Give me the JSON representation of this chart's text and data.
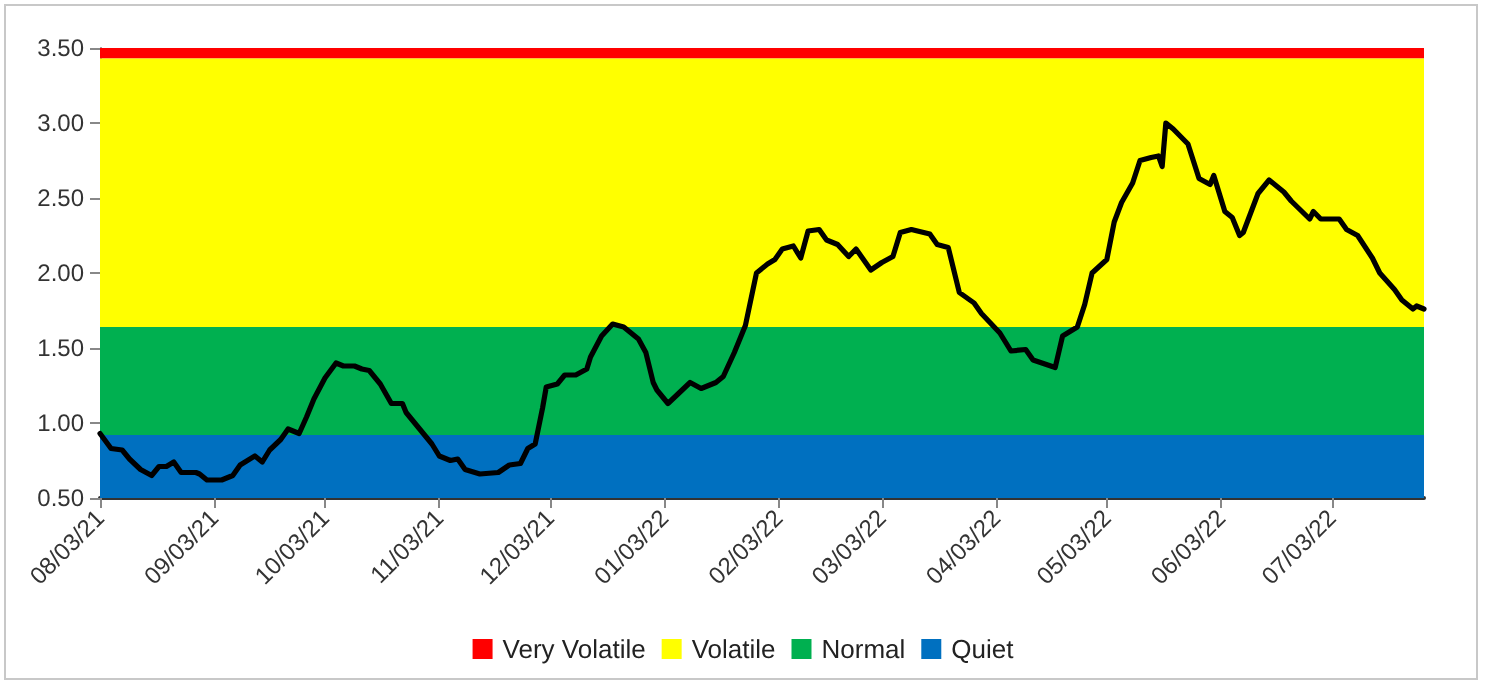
{
  "chart_data": {
    "type": "line",
    "line_style": "solid",
    "legend": "bottom",
    "xlim": [
      "2021-08-03",
      "2022-07-28"
    ],
    "xticks": [
      {
        "value": "2021-08-03",
        "label": "08/03/21"
      },
      {
        "value": "2021-09-03",
        "label": "09/03/21"
      },
      {
        "value": "2021-10-03",
        "label": "10/03/21"
      },
      {
        "value": "2021-11-03",
        "label": "11/03/21"
      },
      {
        "value": "2021-12-03",
        "label": "12/03/21"
      },
      {
        "value": "2022-01-03",
        "label": "01/03/22"
      },
      {
        "value": "2022-02-03",
        "label": "02/03/22"
      },
      {
        "value": "2022-03-03",
        "label": "03/03/22"
      },
      {
        "value": "2022-04-03",
        "label": "04/03/22"
      },
      {
        "value": "2022-05-03",
        "label": "05/03/22"
      },
      {
        "value": "2022-06-03",
        "label": "06/03/22"
      },
      {
        "value": "2022-07-03",
        "label": "07/03/22"
      }
    ],
    "ylim": [
      0.5,
      3.5
    ],
    "yticks": [
      {
        "value": 0.5,
        "label": "0.50"
      },
      {
        "value": 1,
        "label": "1.00"
      },
      {
        "value": 1.5,
        "label": "1.50"
      },
      {
        "value": 2,
        "label": "2.00"
      },
      {
        "value": 2.5,
        "label": "2.50"
      },
      {
        "value": 3,
        "label": "3.00"
      },
      {
        "value": 3.5,
        "label": "3.50"
      }
    ],
    "bands": [
      {
        "axis": "y",
        "from": 3.43,
        "to": 3.5,
        "label": "Very Volatile",
        "color": "#ff0000"
      },
      {
        "axis": "y",
        "from": 1.64,
        "to": 3.43,
        "label": "Volatile",
        "color": "#ffff00"
      },
      {
        "axis": "y",
        "from": 0.92,
        "to": 1.64,
        "label": "Normal",
        "color": "#00b050"
      },
      {
        "axis": "y",
        "from": 0.5,
        "to": 0.92,
        "label": "Quiet",
        "color": "#0070c0"
      }
    ],
    "series": [
      {
        "color": "#000000",
        "x": [
          "2021-08-03",
          "2021-08-06",
          "2021-08-09",
          "2021-08-11",
          "2021-08-14",
          "2021-08-17",
          "2021-08-19",
          "2021-08-21",
          "2021-08-23",
          "2021-08-25",
          "2021-08-29",
          "2021-08-30",
          "2021-09-01",
          "2021-09-05",
          "2021-09-08",
          "2021-09-10",
          "2021-09-14",
          "2021-09-16",
          "2021-09-18",
          "2021-09-21",
          "2021-09-23",
          "2021-09-26",
          "2021-09-28",
          "2021-09-30",
          "2021-10-03",
          "2021-10-06",
          "2021-10-08",
          "2021-10-11",
          "2021-10-13",
          "2021-10-15",
          "2021-10-18",
          "2021-10-21",
          "2021-10-24",
          "2021-10-25",
          "2021-10-28",
          "2021-11-01",
          "2021-11-03",
          "2021-11-06",
          "2021-11-08",
          "2021-11-10",
          "2021-11-14",
          "2021-11-19",
          "2021-11-22",
          "2021-11-25",
          "2021-11-27",
          "2021-11-29",
          "2021-12-01",
          "2021-12-02",
          "2021-12-05",
          "2021-12-07",
          "2021-12-10",
          "2021-12-13",
          "2021-12-14",
          "2021-12-17",
          "2021-12-20",
          "2021-12-23",
          "2021-12-27",
          "2021-12-29",
          "2021-12-31",
          "2022-01-01",
          "2022-01-04",
          "2022-01-07",
          "2022-01-10",
          "2022-01-13",
          "2022-01-17",
          "2022-01-19",
          "2022-01-22",
          "2022-01-25",
          "2022-01-28",
          "2022-01-31",
          "2022-02-02",
          "2022-02-04",
          "2022-02-07",
          "2022-02-09",
          "2022-02-11",
          "2022-02-14",
          "2022-02-16",
          "2022-02-19",
          "2022-02-22",
          "2022-02-24",
          "2022-02-28",
          "2022-03-03",
          "2022-03-06",
          "2022-03-08",
          "2022-03-11",
          "2022-03-16",
          "2022-03-18",
          "2022-03-21",
          "2022-03-24",
          "2022-03-28",
          "2022-03-30",
          "2022-04-04",
          "2022-04-07",
          "2022-04-11",
          "2022-04-13",
          "2022-04-19",
          "2022-04-21",
          "2022-04-25",
          "2022-04-27",
          "2022-04-29",
          "2022-05-03",
          "2022-05-05",
          "2022-05-07",
          "2022-05-10",
          "2022-05-12",
          "2022-05-15",
          "2022-05-17",
          "2022-05-18",
          "2022-05-19",
          "2022-05-21",
          "2022-05-25",
          "2022-05-28",
          "2022-05-31",
          "2022-06-01",
          "2022-06-04",
          "2022-06-06",
          "2022-06-08",
          "2022-06-09",
          "2022-06-13",
          "2022-06-16",
          "2022-06-20",
          "2022-06-22",
          "2022-06-27",
          "2022-06-28",
          "2022-06-30",
          "2022-07-05",
          "2022-07-07",
          "2022-07-10",
          "2022-07-14",
          "2022-07-16",
          "2022-07-20",
          "2022-07-22",
          "2022-07-25",
          "2022-07-26",
          "2022-07-28"
        ],
        "values": [
          0.93,
          0.83,
          0.82,
          0.76,
          0.69,
          0.65,
          0.71,
          0.71,
          0.74,
          0.67,
          0.67,
          0.66,
          0.62,
          0.62,
          0.65,
          0.72,
          0.78,
          0.74,
          0.82,
          0.89,
          0.96,
          0.93,
          1.04,
          1.16,
          1.3,
          1.4,
          1.38,
          1.38,
          1.36,
          1.35,
          1.26,
          1.13,
          1.13,
          1.07,
          0.98,
          0.86,
          0.78,
          0.75,
          0.76,
          0.69,
          0.66,
          0.67,
          0.72,
          0.73,
          0.83,
          0.86,
          1.1,
          1.24,
          1.26,
          1.32,
          1.32,
          1.36,
          1.44,
          1.58,
          1.66,
          1.64,
          1.56,
          1.47,
          1.27,
          1.22,
          1.13,
          1.2,
          1.27,
          1.23,
          1.27,
          1.31,
          1.47,
          1.65,
          2.0,
          2.06,
          2.09,
          2.16,
          2.18,
          2.1,
          2.28,
          2.29,
          2.22,
          2.19,
          2.11,
          2.16,
          2.02,
          2.07,
          2.11,
          2.27,
          2.29,
          2.26,
          2.19,
          2.17,
          1.87,
          1.8,
          1.73,
          1.6,
          1.48,
          1.49,
          1.42,
          1.37,
          1.58,
          1.64,
          1.79,
          2.0,
          2.09,
          2.34,
          2.47,
          2.6,
          2.75,
          2.77,
          2.78,
          2.71,
          3.0,
          2.96,
          2.86,
          2.63,
          2.59,
          2.65,
          2.41,
          2.37,
          2.25,
          2.27,
          2.53,
          2.62,
          2.54,
          2.48,
          2.36,
          2.41,
          2.36,
          2.36,
          2.29,
          2.25,
          2.1,
          2.0,
          1.89,
          1.82,
          1.76,
          1.78,
          1.76
        ]
      }
    ]
  }
}
